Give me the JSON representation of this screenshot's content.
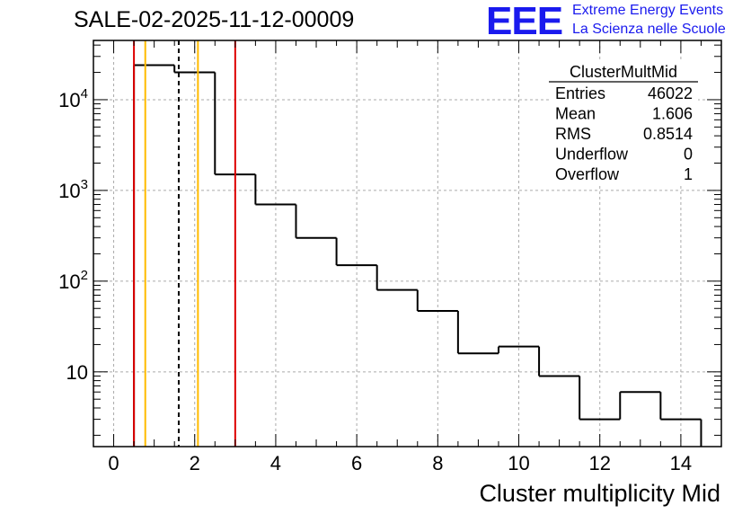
{
  "title": "SALE-02-2025-11-12-00009",
  "logo": {
    "mark": "EEE",
    "line1": "Extreme Energy Events",
    "line2": "La Scienza nelle Scuole",
    "color": "#1a1aee"
  },
  "chart_data": {
    "type": "bar",
    "histogram": true,
    "log_y": true,
    "xlabel": "Cluster multiplicity Mid",
    "ylabel": "",
    "xlim": [
      -0.5,
      15.0
    ],
    "ylim": [
      1.5,
      45000
    ],
    "grid": true,
    "bins": [
      {
        "low": 0.5,
        "high": 1.5,
        "value": 24000
      },
      {
        "low": 1.5,
        "high": 2.5,
        "value": 20000
      },
      {
        "low": 2.5,
        "high": 3.5,
        "value": 1500
      },
      {
        "low": 3.5,
        "high": 4.5,
        "value": 700
      },
      {
        "low": 4.5,
        "high": 5.5,
        "value": 300
      },
      {
        "low": 5.5,
        "high": 6.5,
        "value": 150
      },
      {
        "low": 6.5,
        "high": 7.5,
        "value": 80
      },
      {
        "low": 7.5,
        "high": 8.5,
        "value": 47
      },
      {
        "low": 8.5,
        "high": 9.5,
        "value": 16
      },
      {
        "low": 9.5,
        "high": 10.5,
        "value": 19
      },
      {
        "low": 10.5,
        "high": 11.5,
        "value": 9
      },
      {
        "low": 11.5,
        "high": 12.5,
        "value": 3
      },
      {
        "low": 12.5,
        "high": 13.5,
        "value": 6
      },
      {
        "low": 13.5,
        "high": 14.5,
        "value": 3
      }
    ],
    "x_ticks": [
      {
        "value": 0,
        "label": "0"
      },
      {
        "value": 2,
        "label": "2"
      },
      {
        "value": 4,
        "label": "4"
      },
      {
        "value": 6,
        "label": "6"
      },
      {
        "value": 8,
        "label": "8"
      },
      {
        "value": 10,
        "label": "10"
      },
      {
        "value": 12,
        "label": "12"
      },
      {
        "value": 14,
        "label": "14"
      }
    ],
    "y_ticks": [
      {
        "value": 10,
        "base": "10",
        "exp": ""
      },
      {
        "value": 100,
        "base": "10",
        "exp": "2"
      },
      {
        "value": 1000,
        "base": "10",
        "exp": "3"
      },
      {
        "value": 10000,
        "base": "10",
        "exp": "4"
      }
    ],
    "vertical_lines": [
      {
        "name": "red-line-left",
        "x": 0.5,
        "color": "#dd0000",
        "dashed": false
      },
      {
        "name": "red-line-right",
        "x": 3.0,
        "color": "#dd0000",
        "dashed": false
      },
      {
        "name": "orange-line-left",
        "x": 0.78,
        "color": "#ffbb00",
        "dashed": false
      },
      {
        "name": "orange-line-right",
        "x": 2.08,
        "color": "#ffbb00",
        "dashed": false
      },
      {
        "name": "mean-line",
        "x": 1.606,
        "color": "#000000",
        "dashed": true
      }
    ],
    "stats_box": {
      "name": "ClusterMultMid",
      "rows": [
        {
          "label": "Entries",
          "value": "46022"
        },
        {
          "label": "Mean",
          "value": "1.606"
        },
        {
          "label": "RMS",
          "value": "0.8514"
        },
        {
          "label": "Underflow",
          "value": "0"
        },
        {
          "label": "Overflow",
          "value": "1"
        }
      ]
    }
  }
}
